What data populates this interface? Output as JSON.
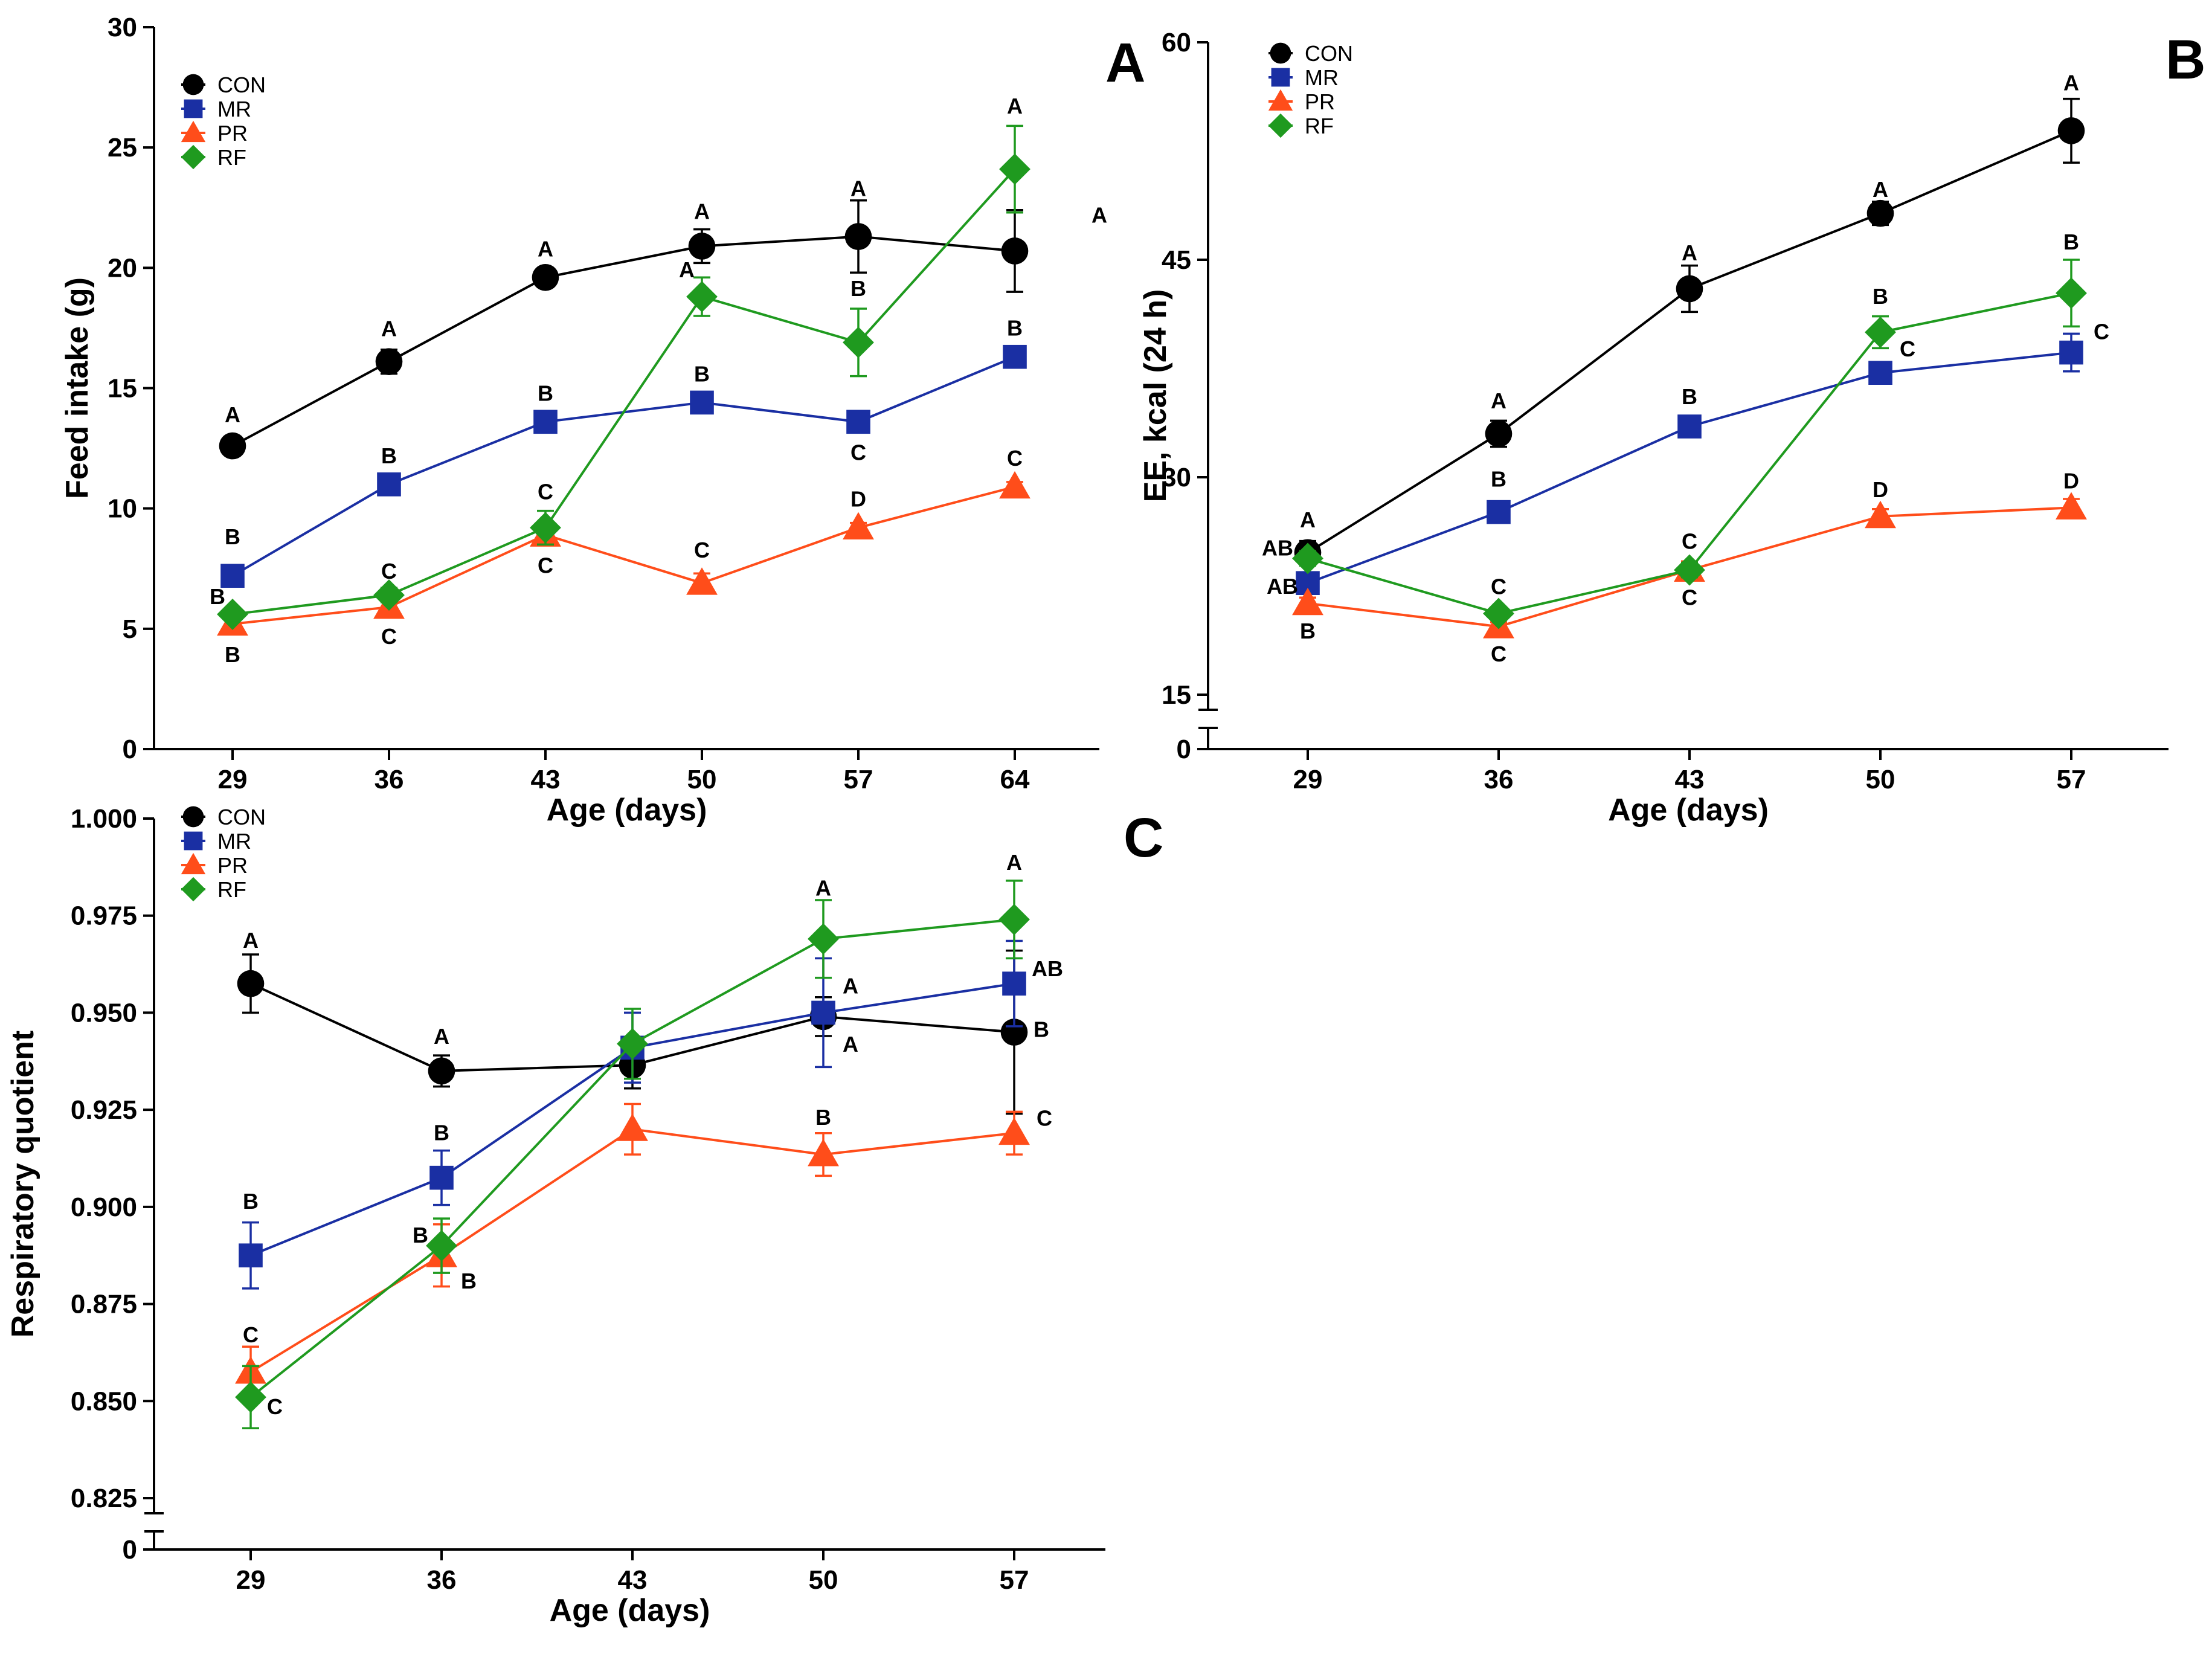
{
  "figure": {
    "description_labels": [
      "A",
      "B",
      "C"
    ]
  },
  "chart_data": [
    {
      "panel": "A",
      "type": "line",
      "title": "",
      "xlabel": "Age (days)",
      "ylabel": "Feed intake (g)",
      "categories": [
        29,
        36,
        43,
        50,
        57,
        64
      ],
      "xticks": [
        "29",
        "36",
        "43",
        "50",
        "57",
        "64"
      ],
      "ylim": [
        0,
        30
      ],
      "yticks": [
        "0",
        "5",
        "10",
        "15",
        "20",
        "25",
        "30"
      ],
      "legend_position": "top-left",
      "series": [
        {
          "name": "CON",
          "color": "#000000",
          "marker": "circle",
          "values": [
            12.6,
            16.1,
            19.6,
            20.9,
            21.3,
            20.7
          ],
          "errors": [
            0.3,
            0.5,
            0.4,
            0.7,
            1.5,
            1.7
          ],
          "labels": [
            "A",
            "A",
            "A",
            "A",
            "A",
            "A"
          ]
        },
        {
          "name": "MR",
          "color": "#1a2fa3",
          "marker": "square",
          "values": [
            7.2,
            11.0,
            13.6,
            14.4,
            13.6,
            16.3
          ],
          "errors": [
            0.4,
            0.2,
            0.2,
            0.2,
            0.2,
            0.2
          ],
          "labels": [
            "B",
            "B",
            "B",
            "B",
            "C",
            "B"
          ]
        },
        {
          "name": "PR",
          "color": "#ff4d1a",
          "marker": "triangle",
          "values": [
            5.2,
            5.9,
            8.9,
            6.9,
            9.2,
            10.9
          ],
          "errors": [
            0.2,
            0.3,
            0.4,
            0.4,
            0.2,
            0.2
          ],
          "labels": [
            "B",
            "C",
            "C",
            "C",
            "D",
            "C"
          ]
        },
        {
          "name": "RF",
          "color": "#1f9a1f",
          "marker": "diamond",
          "values": [
            5.6,
            6.4,
            9.2,
            18.8,
            16.9,
            24.1
          ],
          "errors": [
            0.2,
            0.3,
            0.7,
            0.8,
            1.4,
            1.8
          ],
          "labels": [
            "B",
            "C",
            "C",
            "A",
            "B",
            "A"
          ]
        }
      ]
    },
    {
      "panel": "B",
      "type": "line",
      "title": "",
      "xlabel": "Age (days)",
      "ylabel": "EE, kcal (24 h)",
      "categories": [
        29,
        36,
        43,
        50,
        57
      ],
      "xticks": [
        "29",
        "36",
        "43",
        "50",
        "57"
      ],
      "ylim": [
        15,
        60
      ],
      "yticks": [
        "15",
        "30",
        "45",
        "60"
      ],
      "axis_break_label": "0",
      "legend_position": "top-left",
      "series": [
        {
          "name": "CON",
          "color": "#000000",
          "marker": "circle",
          "values": [
            24.8,
            33.0,
            43.0,
            48.2,
            53.9
          ],
          "errors": [
            0.8,
            0.9,
            1.6,
            0.8,
            2.2
          ],
          "labels": [
            "A",
            "A",
            "A",
            "A",
            "A"
          ]
        },
        {
          "name": "MR",
          "color": "#1a2fa3",
          "marker": "square",
          "values": [
            22.7,
            27.6,
            33.5,
            37.2,
            38.6
          ],
          "errors": [
            0.4,
            0.4,
            0.3,
            0.3,
            1.3
          ],
          "labels": [
            "AB",
            "B",
            "B",
            "C",
            "C"
          ]
        },
        {
          "name": "PR",
          "color": "#ff4d1a",
          "marker": "triangle",
          "values": [
            21.3,
            19.7,
            23.6,
            27.3,
            27.9
          ],
          "errors": [
            0.4,
            0.3,
            0.6,
            0.5,
            0.6
          ],
          "labels": [
            "B",
            "C",
            "C",
            "D",
            "D"
          ]
        },
        {
          "name": "RF",
          "color": "#1f9a1f",
          "marker": "diamond",
          "values": [
            24.4,
            20.6,
            23.6,
            40.0,
            42.7
          ],
          "errors": [
            0.5,
            0.3,
            0.5,
            1.1,
            2.3
          ],
          "labels": [
            "AB",
            "C",
            "C",
            "B",
            "B"
          ]
        }
      ]
    },
    {
      "panel": "C",
      "type": "line",
      "title": "",
      "xlabel": "Age (days)",
      "ylabel": "Respiratory quotient",
      "categories": [
        29,
        36,
        43,
        50,
        57
      ],
      "xticks": [
        "29",
        "36",
        "43",
        "50",
        "57"
      ],
      "ylim": [
        0.825,
        1.0
      ],
      "yticks": [
        "0.825",
        "0.850",
        "0.875",
        "0.900",
        "0.925",
        "0.950",
        "0.975",
        "1.000"
      ],
      "axis_break_label": "0",
      "legend_position": "top-left",
      "series": [
        {
          "name": "CON",
          "color": "#000000",
          "marker": "circle",
          "values": [
            0.9575,
            0.935,
            0.9365,
            0.949,
            0.945
          ],
          "errors": [
            0.0075,
            0.004,
            0.006,
            0.005,
            0.021
          ],
          "labels": [
            "A",
            "A",
            "",
            "A",
            "B"
          ]
        },
        {
          "name": "MR",
          "color": "#1a2fa3",
          "marker": "square",
          "values": [
            0.8875,
            0.9075,
            0.941,
            0.95,
            0.9575
          ],
          "errors": [
            0.0085,
            0.007,
            0.009,
            0.014,
            0.011
          ],
          "labels": [
            "B",
            "B",
            "",
            "A",
            "AB"
          ]
        },
        {
          "name": "PR",
          "color": "#ff4d1a",
          "marker": "triangle",
          "values": [
            0.8575,
            0.8875,
            0.92,
            0.9135,
            0.919
          ],
          "errors": [
            0.0065,
            0.008,
            0.0065,
            0.0055,
            0.0055
          ],
          "labels": [
            "C",
            "B",
            "",
            "B",
            "C"
          ]
        },
        {
          "name": "RF",
          "color": "#1f9a1f",
          "marker": "diamond",
          "values": [
            0.851,
            0.89,
            0.942,
            0.969,
            0.974
          ],
          "errors": [
            0.008,
            0.007,
            0.009,
            0.01,
            0.01
          ],
          "labels": [
            "C",
            "B",
            "",
            "A",
            "A"
          ]
        }
      ]
    }
  ]
}
